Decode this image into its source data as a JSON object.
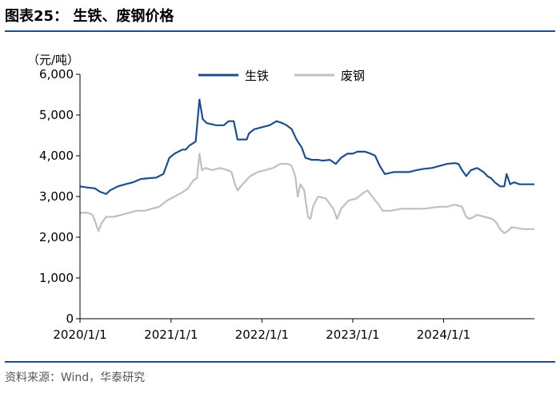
{
  "figure_title": "图表25：  生铁、废钢价格",
  "source": "资料来源：Wind，华泰研究",
  "colors": {
    "pig_iron": "#1f4e8c",
    "scrap": "#c0c0c0",
    "rule": "#1f4e8c"
  },
  "chart_data": {
    "type": "line",
    "title": "",
    "xlabel": "",
    "ylabel": "",
    "y_unit_label": "（元/吨）",
    "ylim": [
      0,
      6000
    ],
    "yticks": [
      0,
      1000,
      2000,
      3000,
      4000,
      5000,
      6000
    ],
    "ytick_labels": [
      "0",
      "1,000",
      "2,000",
      "3,000",
      "4,000",
      "5,000",
      "6,000"
    ],
    "x_range": [
      "2020-01-01",
      "2024-12-31"
    ],
    "xticks": [
      "2020-01-01",
      "2021-01-01",
      "2022-01-01",
      "2023-01-01",
      "2024-01-01"
    ],
    "xtick_labels": [
      "2020/1/1",
      "2021/1/1",
      "2022/1/1",
      "2023/1/1",
      "2024/1/1"
    ],
    "grid": false,
    "legend_position": "top-right",
    "series": [
      {
        "name": "生铁",
        "color": "#1f4e8c",
        "points": [
          [
            "2020-01-01",
            3250
          ],
          [
            "2020-02-01",
            3220
          ],
          [
            "2020-03-01",
            3200
          ],
          [
            "2020-03-20",
            3120
          ],
          [
            "2020-04-15",
            3060
          ],
          [
            "2020-05-01",
            3150
          ],
          [
            "2020-06-01",
            3250
          ],
          [
            "2020-07-01",
            3300
          ],
          [
            "2020-08-01",
            3350
          ],
          [
            "2020-09-01",
            3430
          ],
          [
            "2020-10-01",
            3450
          ],
          [
            "2020-11-01",
            3460
          ],
          [
            "2020-12-01",
            3550
          ],
          [
            "2020-12-25",
            3950
          ],
          [
            "2021-01-15",
            4050
          ],
          [
            "2021-02-15",
            4150
          ],
          [
            "2021-03-01",
            4150
          ],
          [
            "2021-03-15",
            4250
          ],
          [
            "2021-04-10",
            4350
          ],
          [
            "2021-04-25",
            5380
          ],
          [
            "2021-05-08",
            4900
          ],
          [
            "2021-05-25",
            4800
          ],
          [
            "2021-07-01",
            4750
          ],
          [
            "2021-08-01",
            4750
          ],
          [
            "2021-08-20",
            4850
          ],
          [
            "2021-09-10",
            4850
          ],
          [
            "2021-09-25",
            4400
          ],
          [
            "2021-11-01",
            4400
          ],
          [
            "2021-11-10",
            4550
          ],
          [
            "2021-12-01",
            4650
          ],
          [
            "2022-01-01",
            4700
          ],
          [
            "2022-02-01",
            4750
          ],
          [
            "2022-03-01",
            4850
          ],
          [
            "2022-03-25",
            4800
          ],
          [
            "2022-04-10",
            4750
          ],
          [
            "2022-05-01",
            4650
          ],
          [
            "2022-05-20",
            4400
          ],
          [
            "2022-06-10",
            4200
          ],
          [
            "2022-06-25",
            3950
          ],
          [
            "2022-07-20",
            3900
          ],
          [
            "2022-08-15",
            3900
          ],
          [
            "2022-09-01",
            3880
          ],
          [
            "2022-10-01",
            3900
          ],
          [
            "2022-10-25",
            3800
          ],
          [
            "2022-11-15",
            3950
          ],
          [
            "2022-12-10",
            4050
          ],
          [
            "2023-01-01",
            4050
          ],
          [
            "2023-01-20",
            4100
          ],
          [
            "2023-02-20",
            4100
          ],
          [
            "2023-03-15",
            4050
          ],
          [
            "2023-04-01",
            4000
          ],
          [
            "2023-04-20",
            3750
          ],
          [
            "2023-05-10",
            3550
          ],
          [
            "2023-06-15",
            3600
          ],
          [
            "2023-07-15",
            3600
          ],
          [
            "2023-08-15",
            3600
          ],
          [
            "2023-09-15",
            3650
          ],
          [
            "2023-10-15",
            3680
          ],
          [
            "2023-11-15",
            3700
          ],
          [
            "2023-12-15",
            3750
          ],
          [
            "2024-01-15",
            3800
          ],
          [
            "2024-02-15",
            3820
          ],
          [
            "2024-03-01",
            3800
          ],
          [
            "2024-03-15",
            3650
          ],
          [
            "2024-04-01",
            3500
          ],
          [
            "2024-04-20",
            3650
          ],
          [
            "2024-05-15",
            3700
          ],
          [
            "2024-06-10",
            3600
          ],
          [
            "2024-06-25",
            3500
          ],
          [
            "2024-07-10",
            3450
          ],
          [
            "2024-07-25",
            3350
          ],
          [
            "2024-08-15",
            3250
          ],
          [
            "2024-09-01",
            3250
          ],
          [
            "2024-09-10",
            3550
          ],
          [
            "2024-09-25",
            3300
          ],
          [
            "2024-10-10",
            3350
          ],
          [
            "2024-11-01",
            3300
          ],
          [
            "2024-12-31",
            3300
          ]
        ]
      },
      {
        "name": "废钢",
        "color": "#c0c0c0",
        "points": [
          [
            "2020-01-01",
            2600
          ],
          [
            "2020-02-01",
            2600
          ],
          [
            "2020-02-20",
            2550
          ],
          [
            "2020-03-01",
            2400
          ],
          [
            "2020-03-15",
            2150
          ],
          [
            "2020-03-28",
            2350
          ],
          [
            "2020-04-15",
            2500
          ],
          [
            "2020-05-15",
            2500
          ],
          [
            "2020-06-15",
            2550
          ],
          [
            "2020-07-15",
            2600
          ],
          [
            "2020-08-15",
            2650
          ],
          [
            "2020-09-15",
            2650
          ],
          [
            "2020-10-15",
            2700
          ],
          [
            "2020-11-15",
            2750
          ],
          [
            "2020-12-15",
            2900
          ],
          [
            "2021-01-15",
            3000
          ],
          [
            "2021-02-15",
            3100
          ],
          [
            "2021-03-10",
            3200
          ],
          [
            "2021-04-01",
            3400
          ],
          [
            "2021-04-15",
            3450
          ],
          [
            "2021-04-25",
            4050
          ],
          [
            "2021-05-05",
            3650
          ],
          [
            "2021-05-20",
            3700
          ],
          [
            "2021-06-15",
            3650
          ],
          [
            "2021-07-15",
            3700
          ],
          [
            "2021-08-15",
            3650
          ],
          [
            "2021-09-01",
            3600
          ],
          [
            "2021-09-15",
            3300
          ],
          [
            "2021-09-25",
            3150
          ],
          [
            "2021-10-15",
            3300
          ],
          [
            "2021-11-15",
            3500
          ],
          [
            "2021-12-15",
            3600
          ],
          [
            "2022-01-15",
            3650
          ],
          [
            "2022-02-15",
            3700
          ],
          [
            "2022-03-15",
            3800
          ],
          [
            "2022-04-15",
            3800
          ],
          [
            "2022-05-01",
            3750
          ],
          [
            "2022-05-15",
            3500
          ],
          [
            "2022-05-25",
            3000
          ],
          [
            "2022-06-05",
            3300
          ],
          [
            "2022-06-20",
            3150
          ],
          [
            "2022-07-05",
            2500
          ],
          [
            "2022-07-15",
            2450
          ],
          [
            "2022-07-25",
            2750
          ],
          [
            "2022-08-15",
            3000
          ],
          [
            "2022-09-15",
            2950
          ],
          [
            "2022-10-15",
            2700
          ],
          [
            "2022-10-30",
            2450
          ],
          [
            "2022-11-15",
            2700
          ],
          [
            "2022-12-15",
            2900
          ],
          [
            "2023-01-15",
            2950
          ],
          [
            "2023-02-15",
            3100
          ],
          [
            "2023-03-01",
            3150
          ],
          [
            "2023-03-20",
            3000
          ],
          [
            "2023-04-15",
            2800
          ],
          [
            "2023-05-01",
            2650
          ],
          [
            "2023-06-01",
            2650
          ],
          [
            "2023-07-15",
            2700
          ],
          [
            "2023-09-01",
            2700
          ],
          [
            "2023-10-15",
            2700
          ],
          [
            "2023-12-15",
            2750
          ],
          [
            "2024-01-15",
            2750
          ],
          [
            "2024-02-15",
            2800
          ],
          [
            "2024-03-15",
            2750
          ],
          [
            "2024-04-01",
            2500
          ],
          [
            "2024-04-15",
            2450
          ],
          [
            "2024-05-15",
            2550
          ],
          [
            "2024-06-15",
            2500
          ],
          [
            "2024-07-15",
            2450
          ],
          [
            "2024-08-01",
            2350
          ],
          [
            "2024-08-15",
            2200
          ],
          [
            "2024-09-01",
            2100
          ],
          [
            "2024-09-15",
            2150
          ],
          [
            "2024-10-01",
            2250
          ],
          [
            "2024-11-15",
            2200
          ],
          [
            "2024-12-31",
            2200
          ]
        ]
      }
    ]
  }
}
